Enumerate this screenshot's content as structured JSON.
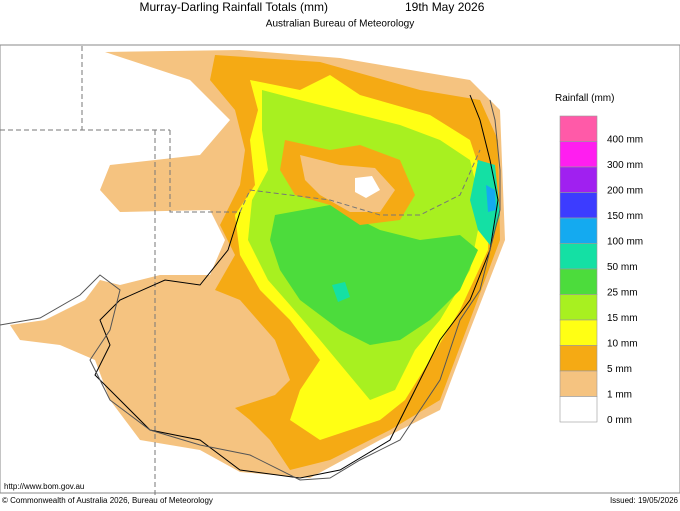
{
  "header": {
    "title": "Murray-Darling Rainfall Totals (mm)",
    "date": "19th May 2026",
    "subtitle": "Australian Bureau of Meteorology"
  },
  "legend": {
    "title": "Rainfall (mm)",
    "items": [
      {
        "label": "400 mm",
        "color": "#ff5aa8"
      },
      {
        "label": "300 mm",
        "color": "#ff1ef0"
      },
      {
        "label": "200 mm",
        "color": "#a020f0"
      },
      {
        "label": "150 mm",
        "color": "#3c3cff"
      },
      {
        "label": "100 mm",
        "color": "#14aaf0"
      },
      {
        "label": "50 mm",
        "color": "#14e0a4"
      },
      {
        "label": "25 mm",
        "color": "#4cdc3c"
      },
      {
        "label": "15 mm",
        "color": "#a8f020"
      },
      {
        "label": "10 mm",
        "color": "#ffff14"
      },
      {
        "label": "5 mm",
        "color": "#f5aa14"
      },
      {
        "label": "1 mm",
        "color": "#f5c380"
      },
      {
        "label": "0 mm",
        "color": "#ffffff"
      }
    ]
  },
  "footer": {
    "url": "http://www.bom.gov.au",
    "copyright": "© Commonwealth of Australia 2026, Bureau of Meteorology",
    "issued": "Issued: 19/05/2026"
  }
}
